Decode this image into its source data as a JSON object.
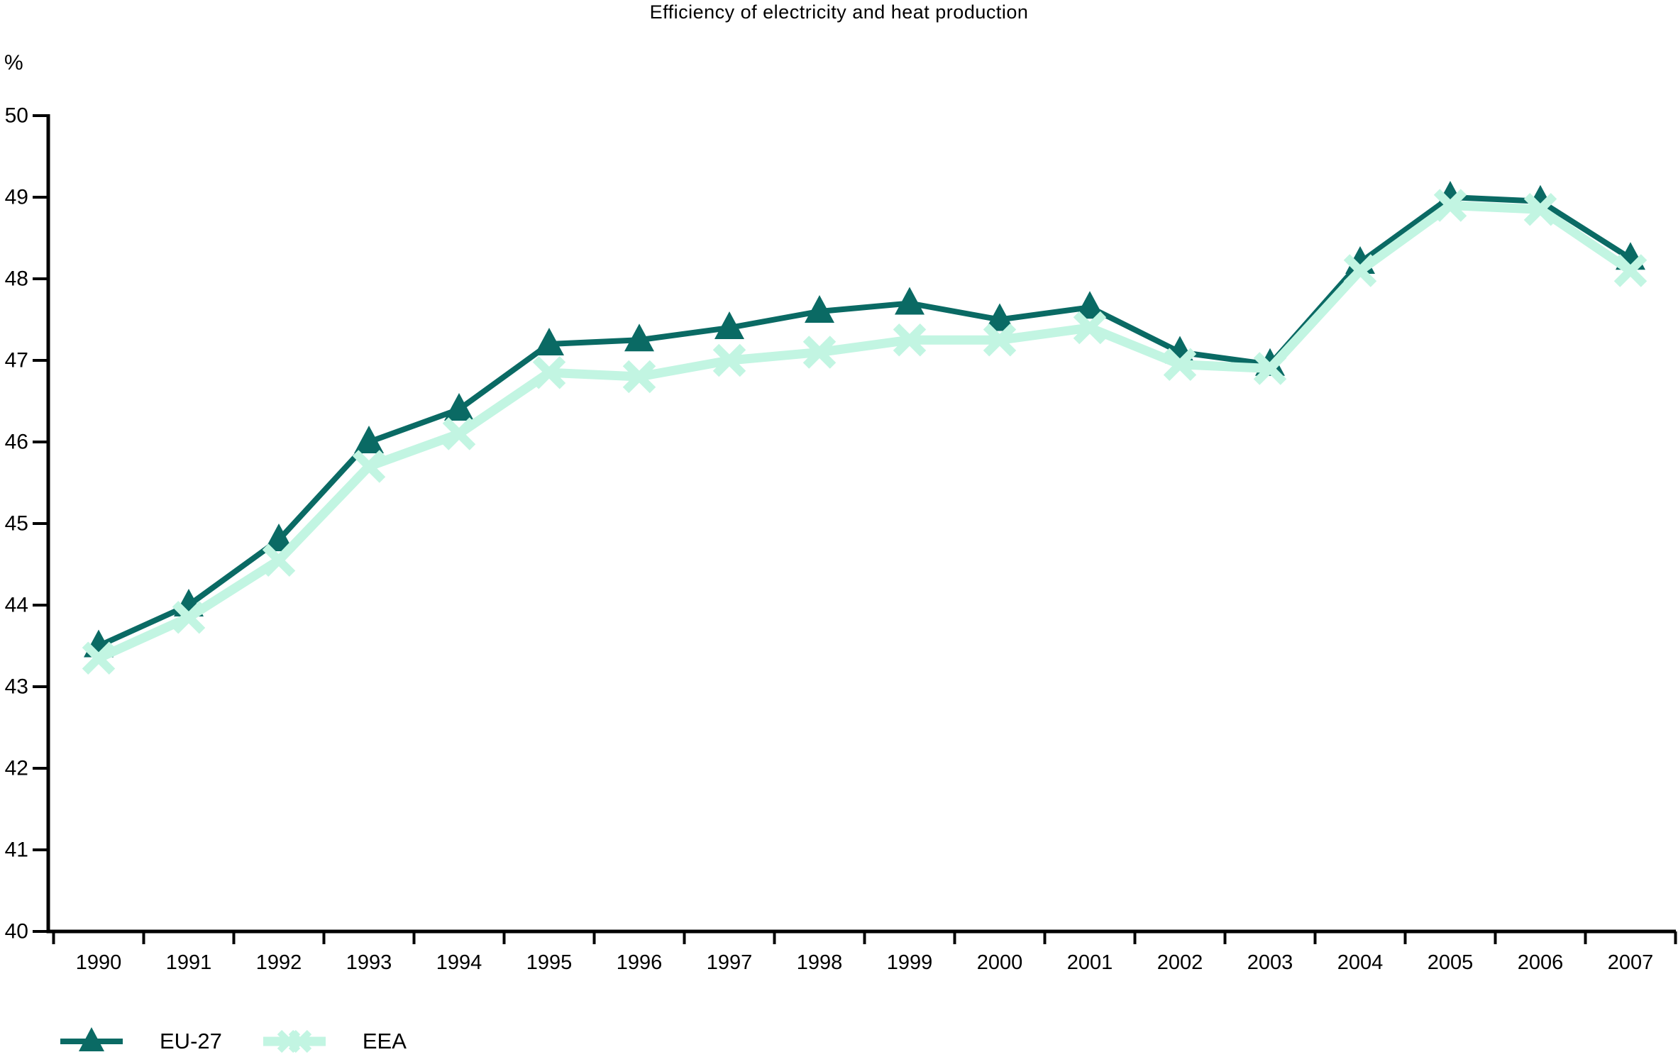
{
  "chart_data": {
    "type": "line",
    "title": "Efficiency of electricity and heat production",
    "y_unit": "%",
    "xlabel": "",
    "ylabel": "%",
    "x": [
      1990,
      1991,
      1992,
      1993,
      1994,
      1995,
      1996,
      1997,
      1998,
      1999,
      2000,
      2001,
      2002,
      2003,
      2004,
      2005,
      2006,
      2007
    ],
    "series": [
      {
        "name": "EU-27",
        "marker": "triangle",
        "color": "#0A6A64",
        "line_width": 8,
        "values": [
          43.5,
          44.0,
          44.8,
          46.0,
          46.4,
          47.2,
          47.25,
          47.4,
          47.6,
          47.7,
          47.5,
          47.65,
          47.1,
          46.95,
          48.2,
          49.0,
          48.95,
          48.25
        ]
      },
      {
        "name": "EEA",
        "marker": "x",
        "color": "#C2F5E2",
        "line_width": 13,
        "values": [
          43.35,
          43.85,
          44.55,
          45.7,
          46.1,
          46.85,
          46.8,
          47.0,
          47.1,
          47.25,
          47.25,
          47.4,
          46.95,
          46.9,
          48.1,
          48.9,
          48.85,
          48.1
        ]
      }
    ],
    "ylim": [
      40,
      50
    ],
    "y_ticks": [
      40,
      41,
      42,
      43,
      44,
      45,
      46,
      47,
      48,
      49,
      50
    ],
    "grid": false,
    "legend_position": "bottom-left",
    "axis_color": "#000000",
    "background": "#ffffff"
  }
}
